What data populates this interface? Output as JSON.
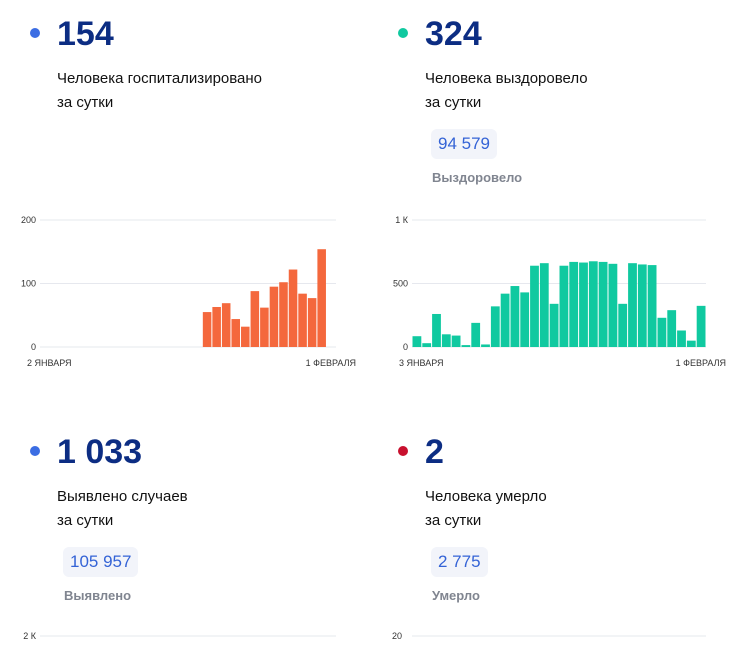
{
  "cards": {
    "hospitalized": {
      "number": "154",
      "desc_line1": "Человека госпитализировано",
      "desc_line2": "за сутки",
      "dot_color": "#3b6de3"
    },
    "recovered": {
      "number": "324",
      "desc_line1": "Человека выздоровело",
      "desc_line2": "за сутки",
      "total_value": "94 579",
      "total_label": "Выздоровело",
      "dot_color": "#10c9a0"
    },
    "cases": {
      "number": "1 033",
      "desc_line1": "Выявлено случаев",
      "desc_line2": "за сутки",
      "total_value": "105 957",
      "total_label": "Выявлено",
      "dot_color": "#3b6de3"
    },
    "deaths": {
      "number": "2",
      "desc_line1": "Человека умерло",
      "desc_line2": "за сутки",
      "total_value": "2 775",
      "total_label": "Умерло",
      "dot_color": "#c8102e"
    }
  },
  "chart_data": [
    {
      "type": "bar",
      "color": "#f4683d",
      "ylim": [
        0,
        200
      ],
      "yticks": [
        "200",
        "100",
        "0"
      ],
      "yticks_values": [
        200,
        100,
        0
      ],
      "x_start_label": "2 ЯНВАРЯ",
      "x_end_label": "1 ФЕВРАЛЯ",
      "slots": 31,
      "first_value_slot": 17,
      "values": [
        55,
        63,
        69,
        44,
        32,
        88,
        62,
        95,
        102,
        122,
        84,
        77,
        154
      ]
    },
    {
      "type": "bar",
      "color": "#10c9a0",
      "ylim": [
        0,
        1000
      ],
      "yticks": [
        "1 К",
        "500",
        "0"
      ],
      "yticks_values": [
        1000,
        500,
        0
      ],
      "x_start_label": "3 ЯНВАРЯ",
      "x_end_label": "1 ФЕВРАЛЯ",
      "slots": 30,
      "first_value_slot": 0,
      "values": [
        85,
        30,
        260,
        100,
        90,
        15,
        190,
        20,
        320,
        420,
        480,
        430,
        640,
        660,
        340,
        640,
        670,
        665,
        675,
        670,
        655,
        340,
        660,
        650,
        645,
        230,
        290,
        130,
        50,
        324
      ]
    },
    {
      "type": "bar",
      "color": "#3b6de3",
      "yticks": [
        "2 К"
      ],
      "values": []
    },
    {
      "type": "bar",
      "color": "#c8102e",
      "yticks": [
        "20"
      ],
      "values": []
    }
  ]
}
